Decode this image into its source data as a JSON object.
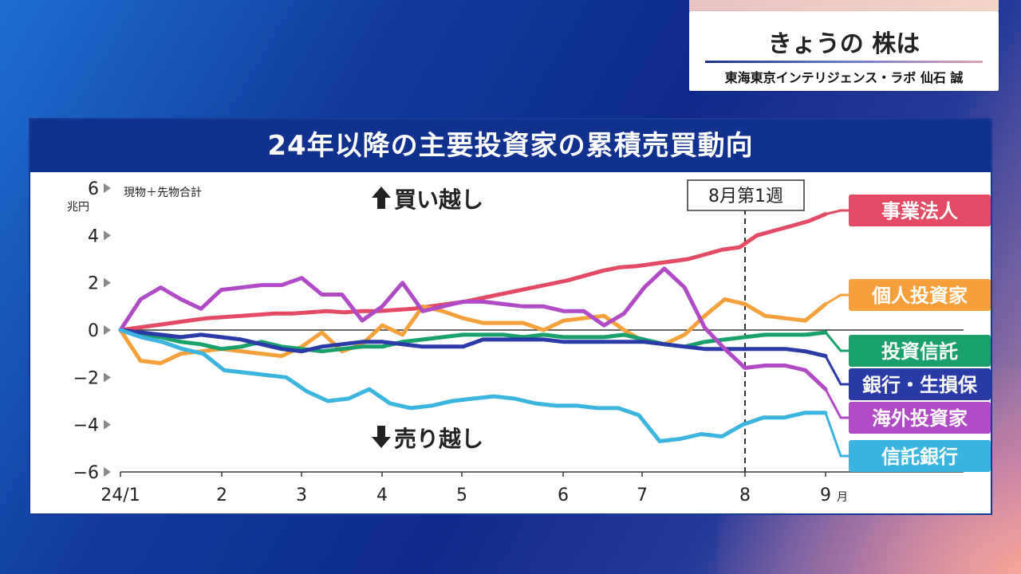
{
  "caption": {
    "title": "きょうの 株は",
    "subtitle": "東海東京インテリジェンス・ラボ 仙石 誠"
  },
  "chart_data": {
    "type": "line",
    "title": "24年以降の主要投資家の累積売買動向",
    "note": "現物＋先物合計",
    "y_unit": "兆円",
    "ylim": [
      -6,
      6
    ],
    "y_ticks": [
      "6",
      "4",
      "2",
      "0",
      "−2",
      "−4",
      "−6"
    ],
    "x_ticks": [
      "24/1",
      "2",
      "3",
      "4",
      "5",
      "6",
      "7",
      "8",
      "9"
    ],
    "x_tick_suffix": "月",
    "marker_label": "8月第1週",
    "buy_label": "買い越し",
    "sell_label": "売り越し",
    "series": [
      {
        "name": "事業法人",
        "color": "#e34b64",
        "values": [
          0,
          0.1,
          0.2,
          0.3,
          0.4,
          0.5,
          0.55,
          0.6,
          0.65,
          0.7,
          0.7,
          0.75,
          0.8,
          0.75,
          0.8,
          0.8,
          0.85,
          0.9,
          1.0,
          1.1,
          1.2,
          1.35,
          1.5,
          1.65,
          1.8,
          1.95,
          2.1,
          2.3,
          2.5,
          2.65,
          2.7,
          2.8,
          2.9,
          3.0,
          3.2,
          3.4,
          3.5,
          4.0,
          4.2,
          4.4,
          4.6,
          4.9
        ]
      },
      {
        "name": "個人投資家",
        "color": "#f5a03a",
        "values": [
          0,
          -1.3,
          -1.4,
          -1.0,
          -0.9,
          -0.8,
          -0.9,
          -1.0,
          -1.1,
          -0.7,
          -0.1,
          -0.9,
          -0.6,
          0.2,
          -0.2,
          1.0,
          0.8,
          0.5,
          0.3,
          0.3,
          0.3,
          0.0,
          0.4,
          0.5,
          0.6,
          0.0,
          -0.5,
          -0.6,
          -0.2,
          0.6,
          1.3,
          1.1,
          0.6,
          0.5,
          0.4,
          1.1
        ]
      },
      {
        "name": "投資信託",
        "color": "#1aa06a",
        "values": [
          0,
          -0.2,
          -0.3,
          -0.5,
          -0.6,
          -0.8,
          -0.7,
          -0.5,
          -0.7,
          -0.8,
          -0.9,
          -0.8,
          -0.7,
          -0.7,
          -0.5,
          -0.4,
          -0.3,
          -0.2,
          -0.2,
          -0.2,
          -0.3,
          -0.2,
          -0.3,
          -0.3,
          -0.3,
          -0.2,
          -0.4,
          -0.6,
          -0.7,
          -0.5,
          -0.4,
          -0.3,
          -0.2,
          -0.2,
          -0.2,
          -0.1
        ]
      },
      {
        "name": "銀行・生損保",
        "color": "#2a3aa6",
        "values": [
          0,
          -0.1,
          -0.2,
          -0.3,
          -0.2,
          -0.3,
          -0.4,
          -0.6,
          -0.8,
          -0.9,
          -0.7,
          -0.6,
          -0.5,
          -0.5,
          -0.6,
          -0.7,
          -0.7,
          -0.7,
          -0.4,
          -0.4,
          -0.4,
          -0.4,
          -0.5,
          -0.5,
          -0.5,
          -0.5,
          -0.5,
          -0.6,
          -0.7,
          -0.8,
          -0.8,
          -0.8,
          -0.8,
          -0.8,
          -0.9,
          -1.1
        ]
      },
      {
        "name": "海外投資家",
        "color": "#b04ac6",
        "values": [
          0,
          1.3,
          1.8,
          1.3,
          0.9,
          1.7,
          1.8,
          1.9,
          1.9,
          2.2,
          1.5,
          1.5,
          0.4,
          1.0,
          2.0,
          0.8,
          1.0,
          1.2,
          1.2,
          1.1,
          1.0,
          1.0,
          0.8,
          0.8,
          0.2,
          0.7,
          1.8,
          2.6,
          1.8,
          0.1,
          -0.8,
          -1.6,
          -1.5,
          -1.5,
          -1.7,
          -2.5
        ]
      },
      {
        "name": "信託銀行",
        "color": "#3cb4e0",
        "values": [
          0,
          -0.3,
          -0.5,
          -0.8,
          -1.0,
          -1.7,
          -1.8,
          -1.9,
          -2.0,
          -2.6,
          -3.0,
          -2.9,
          -2.5,
          -3.1,
          -3.3,
          -3.2,
          -3.0,
          -2.9,
          -2.8,
          -2.9,
          -3.1,
          -3.2,
          -3.2,
          -3.3,
          -3.3,
          -3.6,
          -4.7,
          -4.6,
          -4.4,
          -4.5,
          -4.0,
          -3.7,
          -3.7,
          -3.5,
          -3.5
        ]
      }
    ]
  }
}
